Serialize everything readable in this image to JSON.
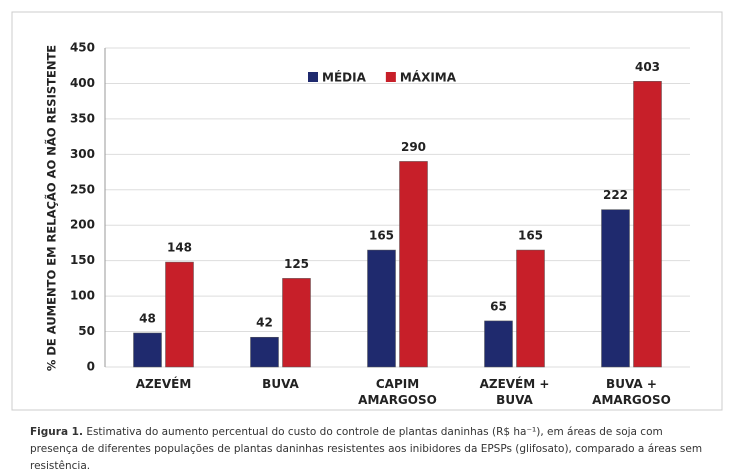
{
  "chart_data": {
    "type": "bar",
    "y_label": "% DE AUMENTO EM RELAÇÃO AO NÃO RESISTENTE",
    "categories": [
      "AZEVÉM",
      "BUVA",
      "CAPIM AMARGOSO",
      "AZEVÉM + BUVA",
      "BUVA + AMARGOSO"
    ],
    "series": [
      {
        "name": "MÉDIA",
        "color": "#1f2a6e",
        "values": [
          48,
          42,
          165,
          65,
          222
        ]
      },
      {
        "name": "MÁXIMA",
        "color": "#c71f29",
        "values": [
          148,
          125,
          290,
          165,
          403
        ]
      }
    ],
    "ylim": [
      0,
      450
    ],
    "yticks": [
      0,
      50,
      100,
      150,
      200,
      250,
      300,
      350,
      400,
      450
    ],
    "grid": true
  },
  "caption": {
    "label": "Figura 1.",
    "text": "Estimativa do aumento percentual do custo do controle de plantas daninhas (R$ ha⁻¹), em áreas de soja com presença de diferentes populações de plantas daninhas resistentes aos inibidores da EPSPs (glifosato), comparado a áreas sem resistência."
  }
}
